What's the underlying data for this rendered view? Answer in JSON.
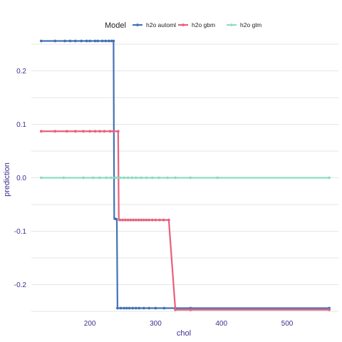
{
  "chart_data": {
    "type": "line",
    "xlabel": "chol",
    "ylabel": "prediction",
    "xlim": [
      111,
      578
    ],
    "ylim": [
      -0.25,
      0.25
    ],
    "x_ticks": [
      200,
      300,
      400,
      500
    ],
    "x_tick_labels": [
      "200",
      "300",
      "400",
      "500"
    ],
    "y_ticks": [
      -0.2,
      -0.1,
      0.0,
      0.1,
      0.2
    ],
    "y_tick_labels": [
      "-0.2",
      "-0.1",
      "0.0",
      "0.1",
      "0.2"
    ],
    "grid": true,
    "legend": {
      "title": "Model",
      "placement": "top",
      "items": [
        "h2o automl",
        "h2o gbm",
        "h2o glm"
      ]
    },
    "series": [
      {
        "name": "h2o automl",
        "color": "#4472b4",
        "points": [
          [
            126,
            0.256
          ],
          [
            147,
            0.256
          ],
          [
            162,
            0.256
          ],
          [
            178,
            0.256
          ],
          [
            195,
            0.256
          ],
          [
            208,
            0.256
          ],
          [
            219,
            0.256
          ],
          [
            229,
            0.256
          ],
          [
            236,
            0.256
          ],
          [
            237,
            -0.077
          ],
          [
            241,
            -0.077
          ],
          [
            242,
            -0.244
          ],
          [
            255,
            -0.244
          ],
          [
            268,
            -0.244
          ],
          [
            285,
            -0.244
          ],
          [
            303,
            -0.244
          ],
          [
            320,
            -0.244
          ],
          [
            353,
            -0.244
          ],
          [
            564,
            -0.244
          ]
        ],
        "markers": [
          126,
          147,
          162,
          170,
          178,
          187,
          195,
          200,
          208,
          212,
          219,
          224,
          229,
          233,
          236,
          239,
          242,
          247,
          252,
          256,
          260,
          265,
          270,
          275,
          282,
          290,
          300,
          313,
          330,
          353,
          564
        ]
      },
      {
        "name": "h2o gbm",
        "color": "#e8607a",
        "points": [
          [
            126,
            0.087
          ],
          [
            165,
            0.087
          ],
          [
            190,
            0.087
          ],
          [
            215,
            0.087
          ],
          [
            231,
            0.087
          ],
          [
            243,
            0.087
          ],
          [
            244,
            -0.079
          ],
          [
            262,
            -0.079
          ],
          [
            280,
            -0.079
          ],
          [
            300,
            -0.079
          ],
          [
            320,
            -0.079
          ],
          [
            330,
            -0.247
          ],
          [
            380,
            -0.247
          ],
          [
            450,
            -0.247
          ],
          [
            564,
            -0.247
          ]
        ],
        "markers": [
          126,
          147,
          165,
          178,
          190,
          200,
          208,
          215,
          222,
          231,
          236,
          243,
          246,
          250,
          254,
          258,
          262,
          266,
          270,
          274,
          278,
          282,
          286,
          290,
          295,
          300,
          306,
          312,
          320,
          330,
          353,
          564
        ]
      },
      {
        "name": "h2o glm",
        "color": "#8fdcc2",
        "points": [
          [
            126,
            0.0
          ],
          [
            564,
            0.0
          ]
        ],
        "markers": [
          126,
          160,
          190,
          205,
          215,
          225,
          232,
          240,
          246,
          252,
          258,
          264,
          270,
          278,
          286,
          295,
          305,
          318,
          330,
          353,
          394,
          564
        ]
      }
    ]
  }
}
